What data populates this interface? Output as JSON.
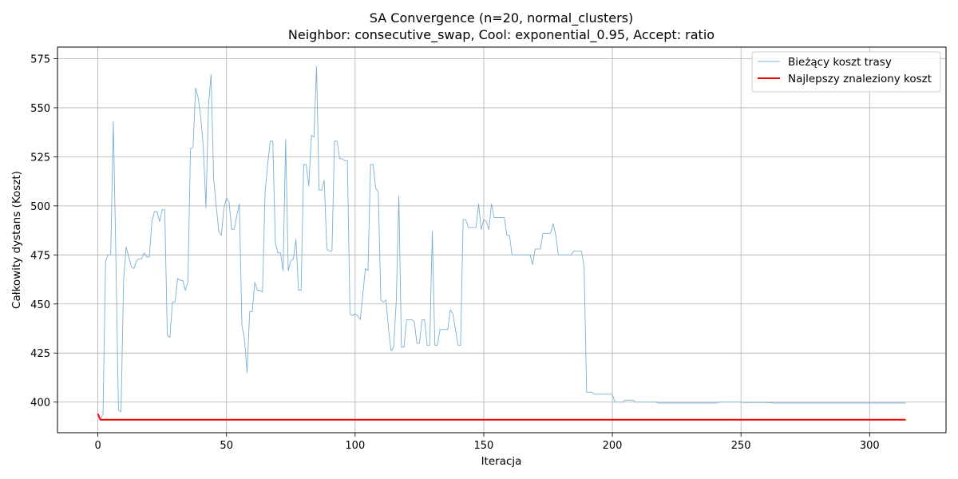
{
  "chart_data": {
    "type": "line",
    "title": "SA Convergence (n=20, normal_clusters)",
    "subtitle": "Neighbor: consecutive_swap, Cool: exponential_0.95, Accept: ratio",
    "xlabel": "Iteracja",
    "ylabel": "Całkowity dystans (Koszt)",
    "xlim": [
      -15.7,
      329.7
    ],
    "ylim": [
      384.4,
      580.9
    ],
    "xticks": [
      0,
      50,
      100,
      150,
      200,
      250,
      300
    ],
    "yticks": [
      400,
      425,
      450,
      475,
      500,
      525,
      550,
      575
    ],
    "grid": true,
    "legend_position": "top-right",
    "series": [
      {
        "name": "Bieżący koszt trasy",
        "color": "#7ab0d4",
        "points": [
          [
            0,
            393
          ],
          [
            1,
            391
          ],
          [
            2,
            394
          ],
          [
            3,
            472
          ],
          [
            4,
            475
          ],
          [
            5,
            475
          ],
          [
            6,
            543
          ],
          [
            7,
            474
          ],
          [
            8,
            396
          ],
          [
            9,
            395
          ],
          [
            10,
            462
          ],
          [
            11,
            479
          ],
          [
            12,
            474
          ],
          [
            13,
            469
          ],
          [
            14,
            468
          ],
          [
            15,
            472
          ],
          [
            16,
            473
          ],
          [
            17,
            473
          ],
          [
            18,
            476
          ],
          [
            19,
            474
          ],
          [
            20,
            474
          ],
          [
            21,
            492
          ],
          [
            22,
            497
          ],
          [
            23,
            497
          ],
          [
            24,
            492
          ],
          [
            25,
            498
          ],
          [
            26,
            498
          ],
          [
            27,
            434
          ],
          [
            28,
            433
          ],
          [
            29,
            451
          ],
          [
            30,
            451
          ],
          [
            31,
            463
          ],
          [
            32,
            462
          ],
          [
            33,
            462
          ],
          [
            34,
            457
          ],
          [
            35,
            461
          ],
          [
            36,
            529
          ],
          [
            37,
            530
          ],
          [
            38,
            560
          ],
          [
            39,
            555
          ],
          [
            40,
            545
          ],
          [
            41,
            530
          ],
          [
            42,
            499
          ],
          [
            43,
            551
          ],
          [
            44,
            567
          ],
          [
            45,
            514
          ],
          [
            46,
            500
          ],
          [
            47,
            487
          ],
          [
            48,
            485
          ],
          [
            49,
            499
          ],
          [
            50,
            504
          ],
          [
            51,
            502
          ],
          [
            52,
            488
          ],
          [
            53,
            488
          ],
          [
            54,
            495
          ],
          [
            55,
            501
          ],
          [
            56,
            439
          ],
          [
            57,
            432
          ],
          [
            58,
            415
          ],
          [
            59,
            446
          ],
          [
            60,
            446
          ],
          [
            61,
            461
          ],
          [
            62,
            457
          ],
          [
            63,
            457
          ],
          [
            64,
            456
          ],
          [
            65,
            507
          ],
          [
            66,
            521
          ],
          [
            67,
            533
          ],
          [
            68,
            533
          ],
          [
            69,
            481
          ],
          [
            70,
            476
          ],
          [
            71,
            476
          ],
          [
            72,
            467
          ],
          [
            73,
            534
          ],
          [
            74,
            467
          ],
          [
            75,
            472
          ],
          [
            76,
            473
          ],
          [
            77,
            483
          ],
          [
            78,
            457
          ],
          [
            79,
            457
          ],
          [
            80,
            521
          ],
          [
            81,
            521
          ],
          [
            82,
            510
          ],
          [
            83,
            536
          ],
          [
            84,
            535
          ],
          [
            85,
            571
          ],
          [
            86,
            508
          ],
          [
            87,
            508
          ],
          [
            88,
            513
          ],
          [
            89,
            478
          ],
          [
            90,
            477
          ],
          [
            91,
            477
          ],
          [
            92,
            533
          ],
          [
            93,
            533
          ],
          [
            94,
            524
          ],
          [
            95,
            524
          ],
          [
            96,
            523
          ],
          [
            97,
            523
          ],
          [
            98,
            445
          ],
          [
            99,
            444
          ],
          [
            100,
            445
          ],
          [
            101,
            444
          ],
          [
            102,
            442
          ],
          [
            103,
            455
          ],
          [
            104,
            468
          ],
          [
            105,
            467
          ],
          [
            106,
            521
          ],
          [
            107,
            521
          ],
          [
            108,
            509
          ],
          [
            109,
            507
          ],
          [
            110,
            452
          ],
          [
            111,
            451
          ],
          [
            112,
            452
          ],
          [
            113,
            437
          ],
          [
            114,
            426
          ],
          [
            115,
            428
          ],
          [
            116,
            452
          ],
          [
            117,
            505
          ],
          [
            118,
            428
          ],
          [
            119,
            428
          ],
          [
            120,
            442
          ],
          [
            121,
            442
          ],
          [
            122,
            442
          ],
          [
            123,
            441
          ],
          [
            124,
            430
          ],
          [
            125,
            430
          ],
          [
            126,
            442
          ],
          [
            127,
            442
          ],
          [
            128,
            429
          ],
          [
            129,
            429
          ],
          [
            130,
            487
          ],
          [
            131,
            429
          ],
          [
            132,
            429
          ],
          [
            133,
            437
          ],
          [
            134,
            437
          ],
          [
            135,
            437
          ],
          [
            136,
            437
          ],
          [
            137,
            447
          ],
          [
            138,
            445
          ],
          [
            139,
            437
          ],
          [
            140,
            429
          ],
          [
            141,
            429
          ],
          [
            142,
            493
          ],
          [
            143,
            493
          ],
          [
            144,
            489
          ],
          [
            145,
            489
          ],
          [
            146,
            489
          ],
          [
            147,
            489
          ],
          [
            148,
            501
          ],
          [
            149,
            488
          ],
          [
            150,
            493
          ],
          [
            151,
            492
          ],
          [
            152,
            488
          ],
          [
            153,
            501
          ],
          [
            154,
            494
          ],
          [
            155,
            494
          ],
          [
            156,
            494
          ],
          [
            157,
            494
          ],
          [
            158,
            494
          ],
          [
            159,
            485
          ],
          [
            160,
            485
          ],
          [
            161,
            475
          ],
          [
            162,
            475
          ],
          [
            163,
            475
          ],
          [
            164,
            475
          ],
          [
            165,
            475
          ],
          [
            166,
            475
          ],
          [
            167,
            475
          ],
          [
            168,
            475
          ],
          [
            169,
            470
          ],
          [
            170,
            478
          ],
          [
            171,
            478
          ],
          [
            172,
            478
          ],
          [
            173,
            486
          ],
          [
            174,
            486
          ],
          [
            175,
            486
          ],
          [
            176,
            486
          ],
          [
            177,
            491
          ],
          [
            178,
            485
          ],
          [
            179,
            475
          ],
          [
            180,
            475
          ],
          [
            181,
            475
          ],
          [
            182,
            475
          ],
          [
            183,
            475
          ],
          [
            184,
            475
          ],
          [
            185,
            477
          ],
          [
            186,
            477
          ],
          [
            187,
            477
          ],
          [
            188,
            477
          ],
          [
            189,
            469
          ],
          [
            190,
            405
          ],
          [
            191,
            405
          ],
          [
            192,
            405
          ],
          [
            193,
            404
          ],
          [
            194,
            404
          ],
          [
            195,
            404
          ],
          [
            196,
            404
          ],
          [
            197,
            404
          ],
          [
            198,
            404
          ],
          [
            199,
            404
          ],
          [
            200,
            404
          ],
          [
            201,
            400
          ],
          [
            202,
            400
          ],
          [
            203,
            400
          ],
          [
            204,
            400
          ],
          [
            205,
            401
          ],
          [
            206,
            401
          ],
          [
            207,
            401
          ],
          [
            208,
            401
          ],
          [
            209,
            400
          ],
          [
            210,
            400
          ],
          [
            211,
            400
          ],
          [
            212,
            400
          ],
          [
            213,
            400
          ],
          [
            214,
            400
          ],
          [
            215,
            400
          ],
          [
            216,
            400
          ],
          [
            217,
            400
          ],
          [
            218,
            399.5
          ],
          [
            220,
            399.5
          ],
          [
            230,
            399.5
          ],
          [
            240,
            399.5
          ],
          [
            242,
            400
          ],
          [
            250,
            400
          ],
          [
            251,
            399.8
          ],
          [
            260,
            399.8
          ],
          [
            263,
            399.5
          ],
          [
            270,
            399.5
          ],
          [
            280,
            399.5
          ],
          [
            290,
            399.5
          ],
          [
            300,
            399.5
          ],
          [
            310,
            399.5
          ],
          [
            314,
            399.5
          ]
        ]
      },
      {
        "name": "Najlepszy znaleziony koszt",
        "color": "#ff0000",
        "points": [
          [
            0,
            394
          ],
          [
            1,
            391
          ],
          [
            314,
            391
          ]
        ]
      }
    ]
  }
}
